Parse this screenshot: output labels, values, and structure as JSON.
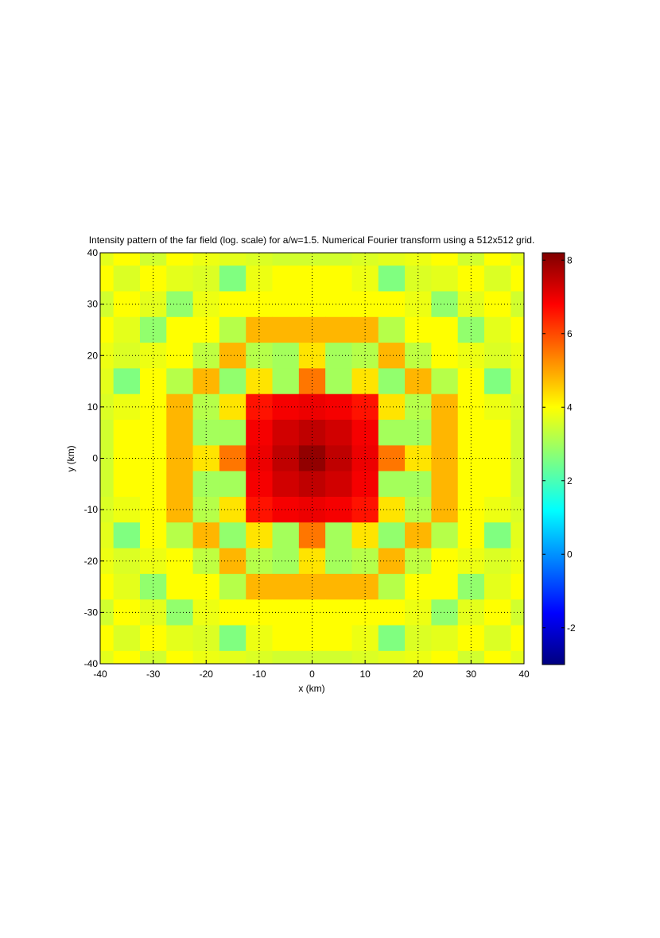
{
  "chart_data": {
    "type": "heatmap",
    "title": "Intensity pattern of the far field (log. scale) for a/w=1.5. Numerical Fourier transform using a 512x512 grid.",
    "x_label": "x (km)",
    "y_label": "y (km)",
    "x": [
      -40,
      -35,
      -30,
      -25,
      -20,
      -15,
      -10,
      -5,
      0,
      5,
      10,
      15,
      20,
      25,
      30,
      35,
      40
    ],
    "y": [
      40,
      35,
      30,
      25,
      20,
      15,
      10,
      5,
      0,
      -5,
      -10,
      -15,
      -20,
      -25,
      -30,
      -35,
      -40
    ],
    "z": [
      [
        3.7,
        4,
        3.5,
        4,
        3.8,
        3.7,
        3.6,
        3.5,
        3.5,
        3.5,
        3.6,
        3.7,
        3.8,
        4,
        3.5,
        4,
        3.7
      ],
      [
        4,
        3.6,
        4,
        3.7,
        3.6,
        2.6,
        3.8,
        4,
        4,
        4,
        3.8,
        2.6,
        3.6,
        3.7,
        4,
        3.6,
        4
      ],
      [
        3.5,
        4,
        3.7,
        2.8,
        3.8,
        4,
        4,
        4,
        4,
        4,
        4,
        4,
        3.8,
        2.8,
        3.7,
        4,
        3.5
      ],
      [
        4,
        3.7,
        2.8,
        4,
        4,
        3.2,
        4.8,
        4.8,
        4.8,
        4.8,
        4.8,
        3.2,
        4,
        4,
        2.8,
        3.7,
        4
      ],
      [
        3.8,
        3.6,
        3.8,
        4,
        3.3,
        4.8,
        3.2,
        3,
        4.3,
        3,
        3.2,
        4.8,
        3.3,
        4,
        3.8,
        3.6,
        3.8
      ],
      [
        3.7,
        2.6,
        4,
        3.2,
        4.8,
        2.8,
        4.3,
        3,
        5.5,
        3,
        4.3,
        2.8,
        4.8,
        3.2,
        4,
        2.6,
        3.7
      ],
      [
        3.6,
        3.8,
        4,
        4.8,
        3.2,
        4.3,
        6.6,
        6.9,
        7,
        6.9,
        6.6,
        4.3,
        3.2,
        4.8,
        4,
        3.8,
        3.6
      ],
      [
        3.5,
        4,
        4,
        4.8,
        3,
        3,
        6.9,
        7.3,
        7.5,
        7.3,
        6.9,
        3,
        3,
        4.8,
        4,
        4,
        3.5
      ],
      [
        3.5,
        4,
        4,
        4.8,
        4.3,
        5.5,
        7,
        7.5,
        8,
        7.5,
        7,
        5.5,
        4.3,
        4.8,
        4,
        4,
        3.5
      ],
      [
        3.5,
        4,
        4,
        4.8,
        3,
        3,
        6.9,
        7.3,
        7.5,
        7.3,
        6.9,
        3,
        3,
        4.8,
        4,
        4,
        3.5
      ],
      [
        3.6,
        3.8,
        4,
        4.8,
        3.2,
        4.3,
        6.6,
        6.9,
        7,
        6.9,
        6.6,
        4.3,
        3.2,
        4.8,
        4,
        3.8,
        3.6
      ],
      [
        3.7,
        2.6,
        4,
        3.2,
        4.8,
        2.8,
        4.3,
        3,
        5.5,
        3,
        4.3,
        2.8,
        4.8,
        3.2,
        4,
        2.6,
        3.7
      ],
      [
        3.8,
        3.6,
        3.8,
        4,
        3.3,
        4.8,
        3.2,
        3,
        4.3,
        3,
        3.2,
        4.8,
        3.3,
        4,
        3.8,
        3.6,
        3.8
      ],
      [
        4,
        3.7,
        2.8,
        4,
        4,
        3.2,
        4.8,
        4.8,
        4.8,
        4.8,
        4.8,
        3.2,
        4,
        4,
        2.8,
        3.7,
        4
      ],
      [
        3.5,
        4,
        3.7,
        2.8,
        3.8,
        4,
        4,
        4,
        4,
        4,
        4,
        4,
        3.8,
        2.8,
        3.7,
        4,
        3.5
      ],
      [
        4,
        3.6,
        4,
        3.7,
        3.6,
        2.6,
        3.8,
        4,
        4,
        4,
        3.8,
        2.6,
        3.6,
        3.7,
        4,
        3.6,
        4
      ],
      [
        3.7,
        4,
        3.5,
        4,
        3.8,
        3.7,
        3.6,
        3.5,
        3.5,
        3.5,
        3.6,
        3.7,
        3.8,
        4,
        3.5,
        4,
        3.7
      ]
    ],
    "xlim": [
      -40,
      40
    ],
    "ylim": [
      -40,
      40
    ],
    "xticks": [
      -40,
      -30,
      -20,
      -10,
      0,
      10,
      20,
      30,
      40
    ],
    "yticks": [
      -40,
      -30,
      -20,
      -10,
      0,
      10,
      20,
      30,
      40
    ],
    "colormap": "jet",
    "clim": [
      -3,
      8.2
    ],
    "cticks": [
      -2,
      0,
      2,
      4,
      6,
      8
    ],
    "grid": true
  }
}
